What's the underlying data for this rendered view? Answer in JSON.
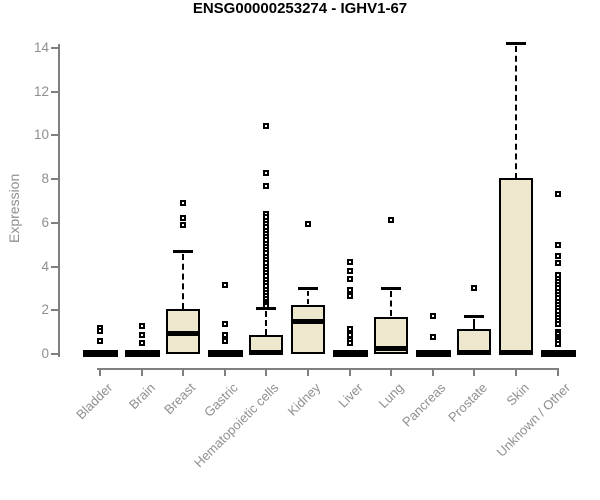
{
  "chart_data": {
    "type": "boxplot",
    "title": "ENSG00000253274 - IGHV1-67",
    "ylabel": "Expression",
    "xlabel": "",
    "ylim": [
      0,
      14
    ],
    "yticks": [
      0,
      2,
      4,
      6,
      8,
      10,
      12,
      14
    ],
    "grid": false,
    "legend": null,
    "box_fill_color": "#ECE7CD",
    "box_line_color": "#000000",
    "axis_color": "#7F7F7F",
    "label_color": "#8F8F8F",
    "categories": [
      "Bladder",
      "Brain",
      "Breast",
      "Gastric",
      "Hematopoietic cells",
      "Kidney",
      "Liver",
      "Lung",
      "Pancreas",
      "Prostate",
      "Skin",
      "Unknown / Other"
    ],
    "boxes": [
      {
        "category": "Bladder",
        "whisker_low": 0,
        "q1": 0,
        "median": 0,
        "q3": 0,
        "whisker_high": 0,
        "outliers": [
          1.2,
          1.05,
          0.6
        ]
      },
      {
        "category": "Brain",
        "whisker_low": 0,
        "q1": 0,
        "median": 0,
        "q3": 0,
        "whisker_high": 0,
        "outliers": [
          1.3,
          0.85,
          0.5
        ]
      },
      {
        "category": "Breast",
        "whisker_low": 0,
        "q1": 0,
        "median": 0.95,
        "q3": 2.05,
        "whisker_high": 4.7,
        "outliers": [
          6.9,
          6.2,
          5.9
        ]
      },
      {
        "category": "Gastric",
        "whisker_low": 0,
        "q1": 0,
        "median": 0,
        "q3": 0,
        "whisker_high": 0,
        "outliers": [
          3.15,
          1.35,
          0.85,
          0.6
        ]
      },
      {
        "category": "Hematopoietic cells",
        "whisker_low": 0,
        "q1": 0,
        "median": 0.05,
        "q3": 0.85,
        "whisker_high": 2.1,
        "outliers": [
          10.45,
          8.3,
          7.7,
          6.4,
          6.25,
          6.1,
          5.95,
          5.8,
          5.65,
          5.5,
          5.35,
          5.2,
          5.05,
          4.9,
          4.75,
          4.6,
          4.45,
          4.3,
          4.15,
          4.0,
          3.85,
          3.7,
          3.55,
          3.4,
          3.25,
          3.1,
          2.95,
          2.8,
          2.65,
          2.5,
          2.4,
          2.3,
          2.2
        ]
      },
      {
        "category": "Kidney",
        "whisker_low": 0,
        "q1": 0,
        "median": 1.5,
        "q3": 2.25,
        "whisker_high": 3.0,
        "outliers": [
          5.95
        ]
      },
      {
        "category": "Liver",
        "whisker_low": 0,
        "q1": 0,
        "median": 0,
        "q3": 0,
        "whisker_high": 0,
        "outliers": [
          4.2,
          3.8,
          3.45,
          2.95,
          2.65,
          1.15,
          0.85,
          0.65,
          0.5
        ]
      },
      {
        "category": "Lung",
        "whisker_low": 0,
        "q1": 0,
        "median": 0.25,
        "q3": 1.7,
        "whisker_high": 3.0,
        "outliers": [
          6.15
        ]
      },
      {
        "category": "Pancreas",
        "whisker_low": 0,
        "q1": 0,
        "median": 0,
        "q3": 0,
        "whisker_high": 0,
        "outliers": [
          1.75,
          0.8
        ]
      },
      {
        "category": "Prostate",
        "whisker_low": 0,
        "q1": 0,
        "median": 0.05,
        "q3": 1.15,
        "whisker_high": 1.75,
        "outliers": [
          3.0
        ]
      },
      {
        "category": "Skin",
        "whisker_low": 0,
        "q1": 0,
        "median": 0.05,
        "q3": 8.05,
        "whisker_high": 14.25,
        "outliers": []
      },
      {
        "category": "Unknown / Other",
        "whisker_low": 0,
        "q1": 0,
        "median": 0,
        "q3": 0,
        "whisker_high": 0,
        "outliers": [
          7.3,
          5.0,
          4.5,
          4.15,
          3.6,
          3.45,
          3.3,
          3.15,
          3.0,
          2.85,
          2.7,
          2.55,
          2.4,
          2.25,
          2.1,
          1.95,
          1.8,
          1.65,
          1.5,
          1.35,
          1.0,
          0.9,
          0.8,
          0.7,
          0.6,
          0.45
        ]
      }
    ]
  }
}
